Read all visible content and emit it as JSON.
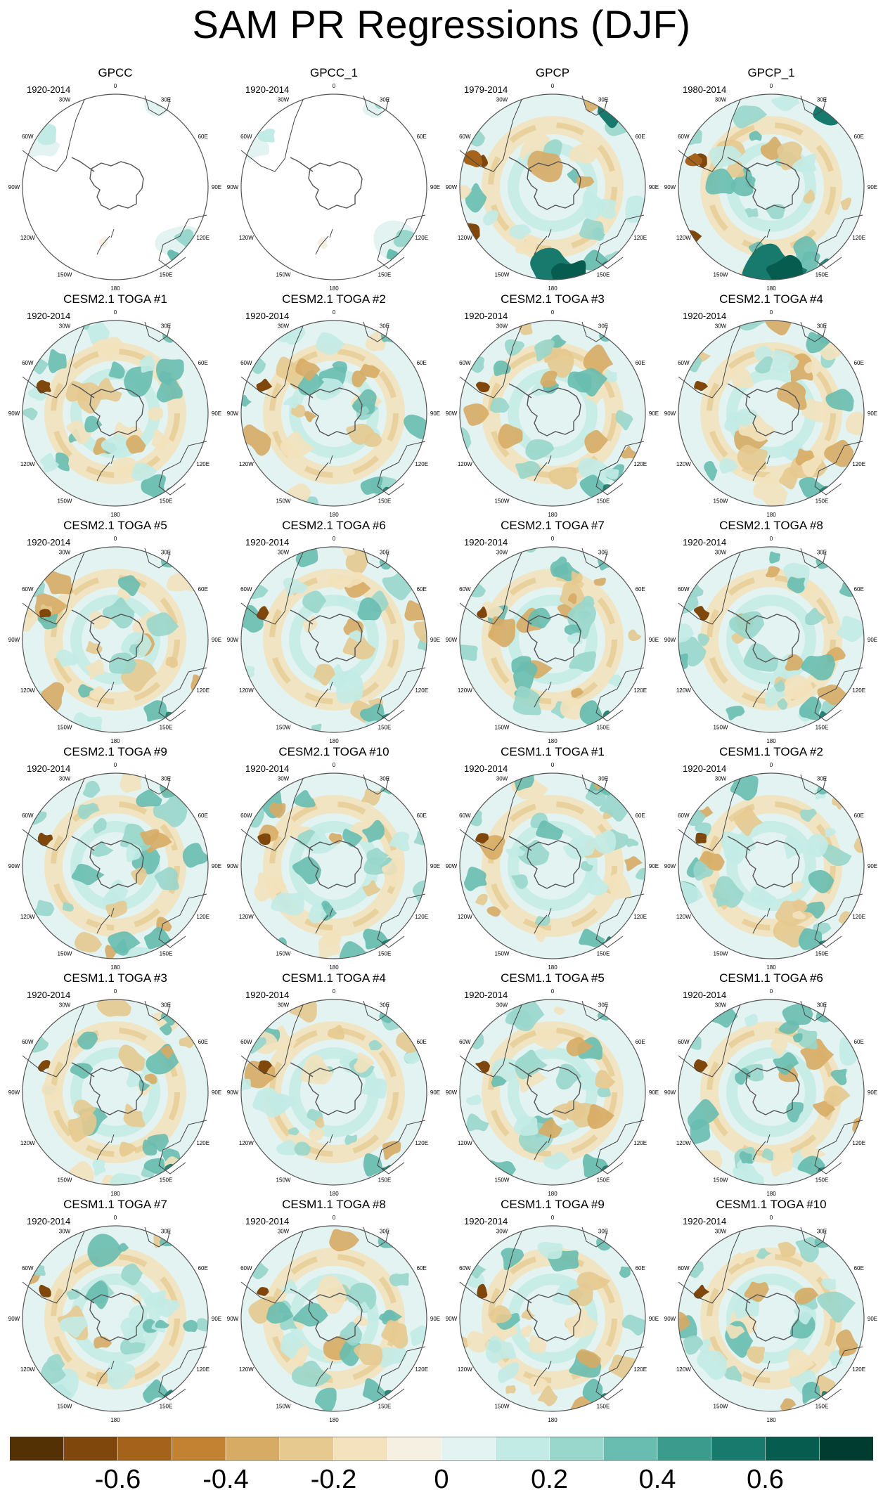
{
  "title": "SAM PR Regressions (DJF)",
  "colorbar": {
    "colors": [
      "#543005",
      "#7f470b",
      "#a5621b",
      "#c28231",
      "#d7ab64",
      "#e6c98f",
      "#f3e2bd",
      "#f6f0e3",
      "#e2f3f1",
      "#c2ebe5",
      "#99d6cb",
      "#69bdb0",
      "#3b9b8c",
      "#187a6c",
      "#065c4e",
      "#003c30"
    ],
    "labels": [
      "-0.6",
      "-0.4",
      "-0.2",
      "0",
      "0.2",
      "0.4",
      "0.6"
    ],
    "label_boundaries": [
      2,
      4,
      6,
      8,
      10,
      12,
      14
    ]
  },
  "longitude_labels": [
    "0",
    "30E",
    "60E",
    "90E",
    "120E",
    "150E",
    "180",
    "150W",
    "120W",
    "90W",
    "60W",
    "30W"
  ],
  "panels": [
    {
      "title": "GPCC",
      "period": "1920-2014",
      "style": "masked"
    },
    {
      "title": "GPCC_1",
      "period": "1920-2014",
      "style": "masked"
    },
    {
      "title": "GPCP",
      "period": "1979-2014",
      "style": "obs"
    },
    {
      "title": "GPCP_1",
      "period": "1980-2014",
      "style": "obs"
    },
    {
      "title": "CESM2.1 TOGA #1",
      "period": "1920-2014",
      "style": "model"
    },
    {
      "title": "CESM2.1 TOGA #2",
      "period": "1920-2014",
      "style": "model"
    },
    {
      "title": "CESM2.1 TOGA #3",
      "period": "1920-2014",
      "style": "model"
    },
    {
      "title": "CESM2.1 TOGA #4",
      "period": "1920-2014",
      "style": "model"
    },
    {
      "title": "CESM2.1 TOGA #5",
      "period": "1920-2014",
      "style": "model"
    },
    {
      "title": "CESM2.1 TOGA #6",
      "period": "1920-2014",
      "style": "model"
    },
    {
      "title": "CESM2.1 TOGA #7",
      "period": "1920-2014",
      "style": "model"
    },
    {
      "title": "CESM2.1 TOGA #8",
      "period": "1920-2014",
      "style": "model"
    },
    {
      "title": "CESM2.1 TOGA #9",
      "period": "1920-2014",
      "style": "model"
    },
    {
      "title": "CESM2.1 TOGA #10",
      "period": "1920-2014",
      "style": "model"
    },
    {
      "title": "CESM1.1 TOGA #1",
      "period": "1920-2014",
      "style": "model"
    },
    {
      "title": "CESM1.1 TOGA #2",
      "period": "1920-2014",
      "style": "model"
    },
    {
      "title": "CESM1.1 TOGA #3",
      "period": "1920-2014",
      "style": "model"
    },
    {
      "title": "CESM1.1 TOGA #4",
      "period": "1920-2014",
      "style": "model"
    },
    {
      "title": "CESM1.1 TOGA #5",
      "period": "1920-2014",
      "style": "model"
    },
    {
      "title": "CESM1.1 TOGA #6",
      "period": "1920-2014",
      "style": "model"
    },
    {
      "title": "CESM1.1 TOGA #7",
      "period": "1920-2014",
      "style": "model"
    },
    {
      "title": "CESM1.1 TOGA #8",
      "period": "1920-2014",
      "style": "model"
    },
    {
      "title": "CESM1.1 TOGA #9",
      "period": "1920-2014",
      "style": "model"
    },
    {
      "title": "CESM1.1 TOGA #10",
      "period": "1920-2014",
      "style": "model"
    }
  ]
}
